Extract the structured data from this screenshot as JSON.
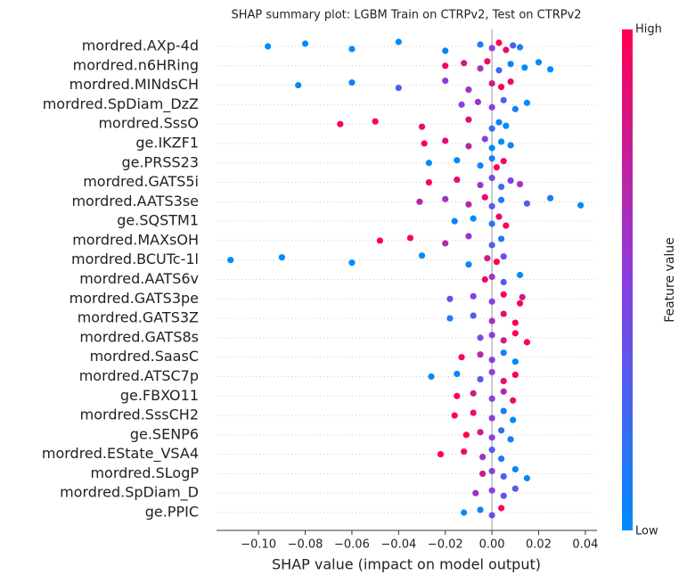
{
  "chart_data": {
    "type": "beeswarm",
    "title": "SHAP summary plot: LGBM Train on CTRPv2, Test on CTRPv2",
    "xlabel": "SHAP value (impact on model output)",
    "xlim": [
      -0.118,
      0.045
    ],
    "xticks": [
      {
        "value": -0.1,
        "label": "−0.10"
      },
      {
        "value": -0.08,
        "label": "−0.08"
      },
      {
        "value": -0.06,
        "label": "−0.06"
      },
      {
        "value": -0.04,
        "label": "−0.04"
      },
      {
        "value": -0.02,
        "label": "−0.02"
      },
      {
        "value": 0.0,
        "label": "0.00"
      },
      {
        "value": 0.02,
        "label": "0.02"
      },
      {
        "value": 0.04,
        "label": "0.04"
      }
    ],
    "colormap": [
      "#008bfb",
      "#8a3ee0",
      "#ff0052"
    ],
    "colorbar": {
      "label": "Feature value",
      "high_label": "High",
      "low_label": "Low"
    },
    "features": [
      {
        "name": "mordred.AXp-4d",
        "shap": [
          -0.096,
          -0.08,
          -0.06,
          -0.04,
          -0.02,
          -0.005,
          0,
          0.003,
          0.006,
          0.009,
          0.012
        ],
        "feature_value": [
          0,
          0,
          0.05,
          0,
          0.05,
          0.1,
          0.5,
          1,
          0.9,
          0.3,
          0.1
        ]
      },
      {
        "name": "mordred.n6HRing",
        "shap": [
          -0.02,
          -0.012,
          -0.005,
          -0.002,
          0.003,
          0.008,
          0.014,
          0.02,
          0.025
        ],
        "feature_value": [
          0.95,
          0.8,
          0.6,
          0.9,
          0.2,
          0.05,
          0,
          0,
          0
        ]
      },
      {
        "name": "mordred.MINdsCH",
        "shap": [
          -0.083,
          -0.06,
          -0.04,
          -0.02,
          -0.01,
          0,
          0.004,
          0.008
        ],
        "feature_value": [
          0,
          0.05,
          0.3,
          0.5,
          0.6,
          0.8,
          1,
          0.9
        ]
      },
      {
        "name": "mordred.SpDiam_DzZ",
        "shap": [
          -0.013,
          -0.006,
          0,
          0.005,
          0.01,
          0.015
        ],
        "feature_value": [
          0.5,
          0.6,
          0.5,
          0.3,
          0.1,
          0
        ]
      },
      {
        "name": "mordred.SssO",
        "shap": [
          -0.065,
          -0.05,
          -0.03,
          -0.01,
          0,
          0.003,
          0.006
        ],
        "feature_value": [
          1,
          1,
          0.9,
          0.9,
          0.2,
          0.05,
          0
        ]
      },
      {
        "name": "ge.IKZF1",
        "shap": [
          -0.029,
          -0.02,
          -0.01,
          -0.003,
          0,
          0.004,
          0.008
        ],
        "feature_value": [
          1,
          0.9,
          0.7,
          0.5,
          0,
          0,
          0.05
        ]
      },
      {
        "name": "ge.PRSS23",
        "shap": [
          -0.027,
          -0.015,
          -0.005,
          0,
          0.002,
          0.005
        ],
        "feature_value": [
          0,
          0,
          0.05,
          0.1,
          1,
          0.95
        ]
      },
      {
        "name": "mordred.GATS5i",
        "shap": [
          -0.027,
          -0.015,
          -0.005,
          0,
          0.004,
          0.008,
          0.012
        ],
        "feature_value": [
          1,
          0.9,
          0.6,
          0.4,
          0.2,
          0.5,
          0.6
        ]
      },
      {
        "name": "mordred.AATS3se",
        "shap": [
          -0.031,
          -0.02,
          -0.01,
          -0.003,
          0,
          0.004,
          0.015,
          0.025,
          0.038
        ],
        "feature_value": [
          0.7,
          0.6,
          0.7,
          0.9,
          0.3,
          0.1,
          0.3,
          0.1,
          0
        ]
      },
      {
        "name": "ge.SQSTM1",
        "shap": [
          -0.016,
          -0.008,
          0,
          0.003,
          0.006
        ],
        "feature_value": [
          0.05,
          0,
          0.1,
          0.9,
          1
        ]
      },
      {
        "name": "mordred.MAXsOH",
        "shap": [
          -0.048,
          -0.035,
          -0.02,
          -0.01,
          0,
          0.004
        ],
        "feature_value": [
          1,
          0.95,
          0.7,
          0.6,
          0.3,
          0.1
        ]
      },
      {
        "name": "mordred.BCUTc-1l",
        "shap": [
          -0.112,
          -0.09,
          -0.06,
          -0.03,
          -0.01,
          -0.002,
          0.002,
          0.005
        ],
        "feature_value": [
          0,
          0,
          0,
          0,
          0.05,
          0.8,
          1,
          0.4
        ]
      },
      {
        "name": "mordred.AATS6v",
        "shap": [
          -0.003,
          0,
          0.005,
          0.012
        ],
        "feature_value": [
          0.9,
          0.6,
          0.3,
          0
        ]
      },
      {
        "name": "mordred.GATS3pe",
        "shap": [
          -0.018,
          -0.008,
          0,
          0.005,
          0.012,
          0.013
        ],
        "feature_value": [
          0.4,
          0.5,
          0.5,
          1,
          1,
          0.8
        ]
      },
      {
        "name": "mordred.GATS3Z",
        "shap": [
          -0.018,
          -0.008,
          0,
          0.005,
          0.01
        ],
        "feature_value": [
          0.1,
          0.3,
          0.6,
          0.9,
          1
        ]
      },
      {
        "name": "mordred.GATS8s",
        "shap": [
          -0.005,
          0,
          0.005,
          0.01,
          0.015
        ],
        "feature_value": [
          0.4,
          0.5,
          0.8,
          1,
          1
        ]
      },
      {
        "name": "mordred.SaasC",
        "shap": [
          -0.013,
          -0.005,
          0,
          0.005,
          0.01
        ],
        "feature_value": [
          0.95,
          0.7,
          0.5,
          0.1,
          0
        ]
      },
      {
        "name": "mordred.ATSC7p",
        "shap": [
          -0.026,
          -0.015,
          -0.005,
          0,
          0.005,
          0.01
        ],
        "feature_value": [
          0,
          0.05,
          0.3,
          0.5,
          0.9,
          1
        ]
      },
      {
        "name": "ge.FBXO11",
        "shap": [
          -0.015,
          -0.008,
          0,
          0.005,
          0.009
        ],
        "feature_value": [
          1,
          0.8,
          0.5,
          0.7,
          0.9
        ]
      },
      {
        "name": "mordred.SssCH2",
        "shap": [
          -0.016,
          -0.008,
          0,
          0.005,
          0.009
        ],
        "feature_value": [
          1,
          0.9,
          0.5,
          0.1,
          0
        ]
      },
      {
        "name": "ge.SENP6",
        "shap": [
          -0.011,
          -0.005,
          0,
          0.004,
          0.008
        ],
        "feature_value": [
          1,
          0.8,
          0.5,
          0.2,
          0.1
        ]
      },
      {
        "name": "mordred.EState_VSA4",
        "shap": [
          -0.022,
          -0.012,
          -0.004,
          0,
          0.004
        ],
        "feature_value": [
          1,
          0.9,
          0.6,
          0.3,
          0.1
        ]
      },
      {
        "name": "mordred.SLogP",
        "shap": [
          -0.004,
          0,
          0.005,
          0.01,
          0.015
        ],
        "feature_value": [
          0.8,
          0.5,
          0.3,
          0.05,
          0
        ]
      },
      {
        "name": "mordred.SpDiam_D",
        "shap": [
          -0.007,
          0,
          0.005,
          0.01
        ],
        "feature_value": [
          0.6,
          0.5,
          0.4,
          0.3
        ]
      },
      {
        "name": "ge.PPIC",
        "shap": [
          -0.012,
          -0.005,
          0,
          0.004
        ],
        "feature_value": [
          0,
          0.1,
          0.4,
          1
        ]
      }
    ]
  }
}
